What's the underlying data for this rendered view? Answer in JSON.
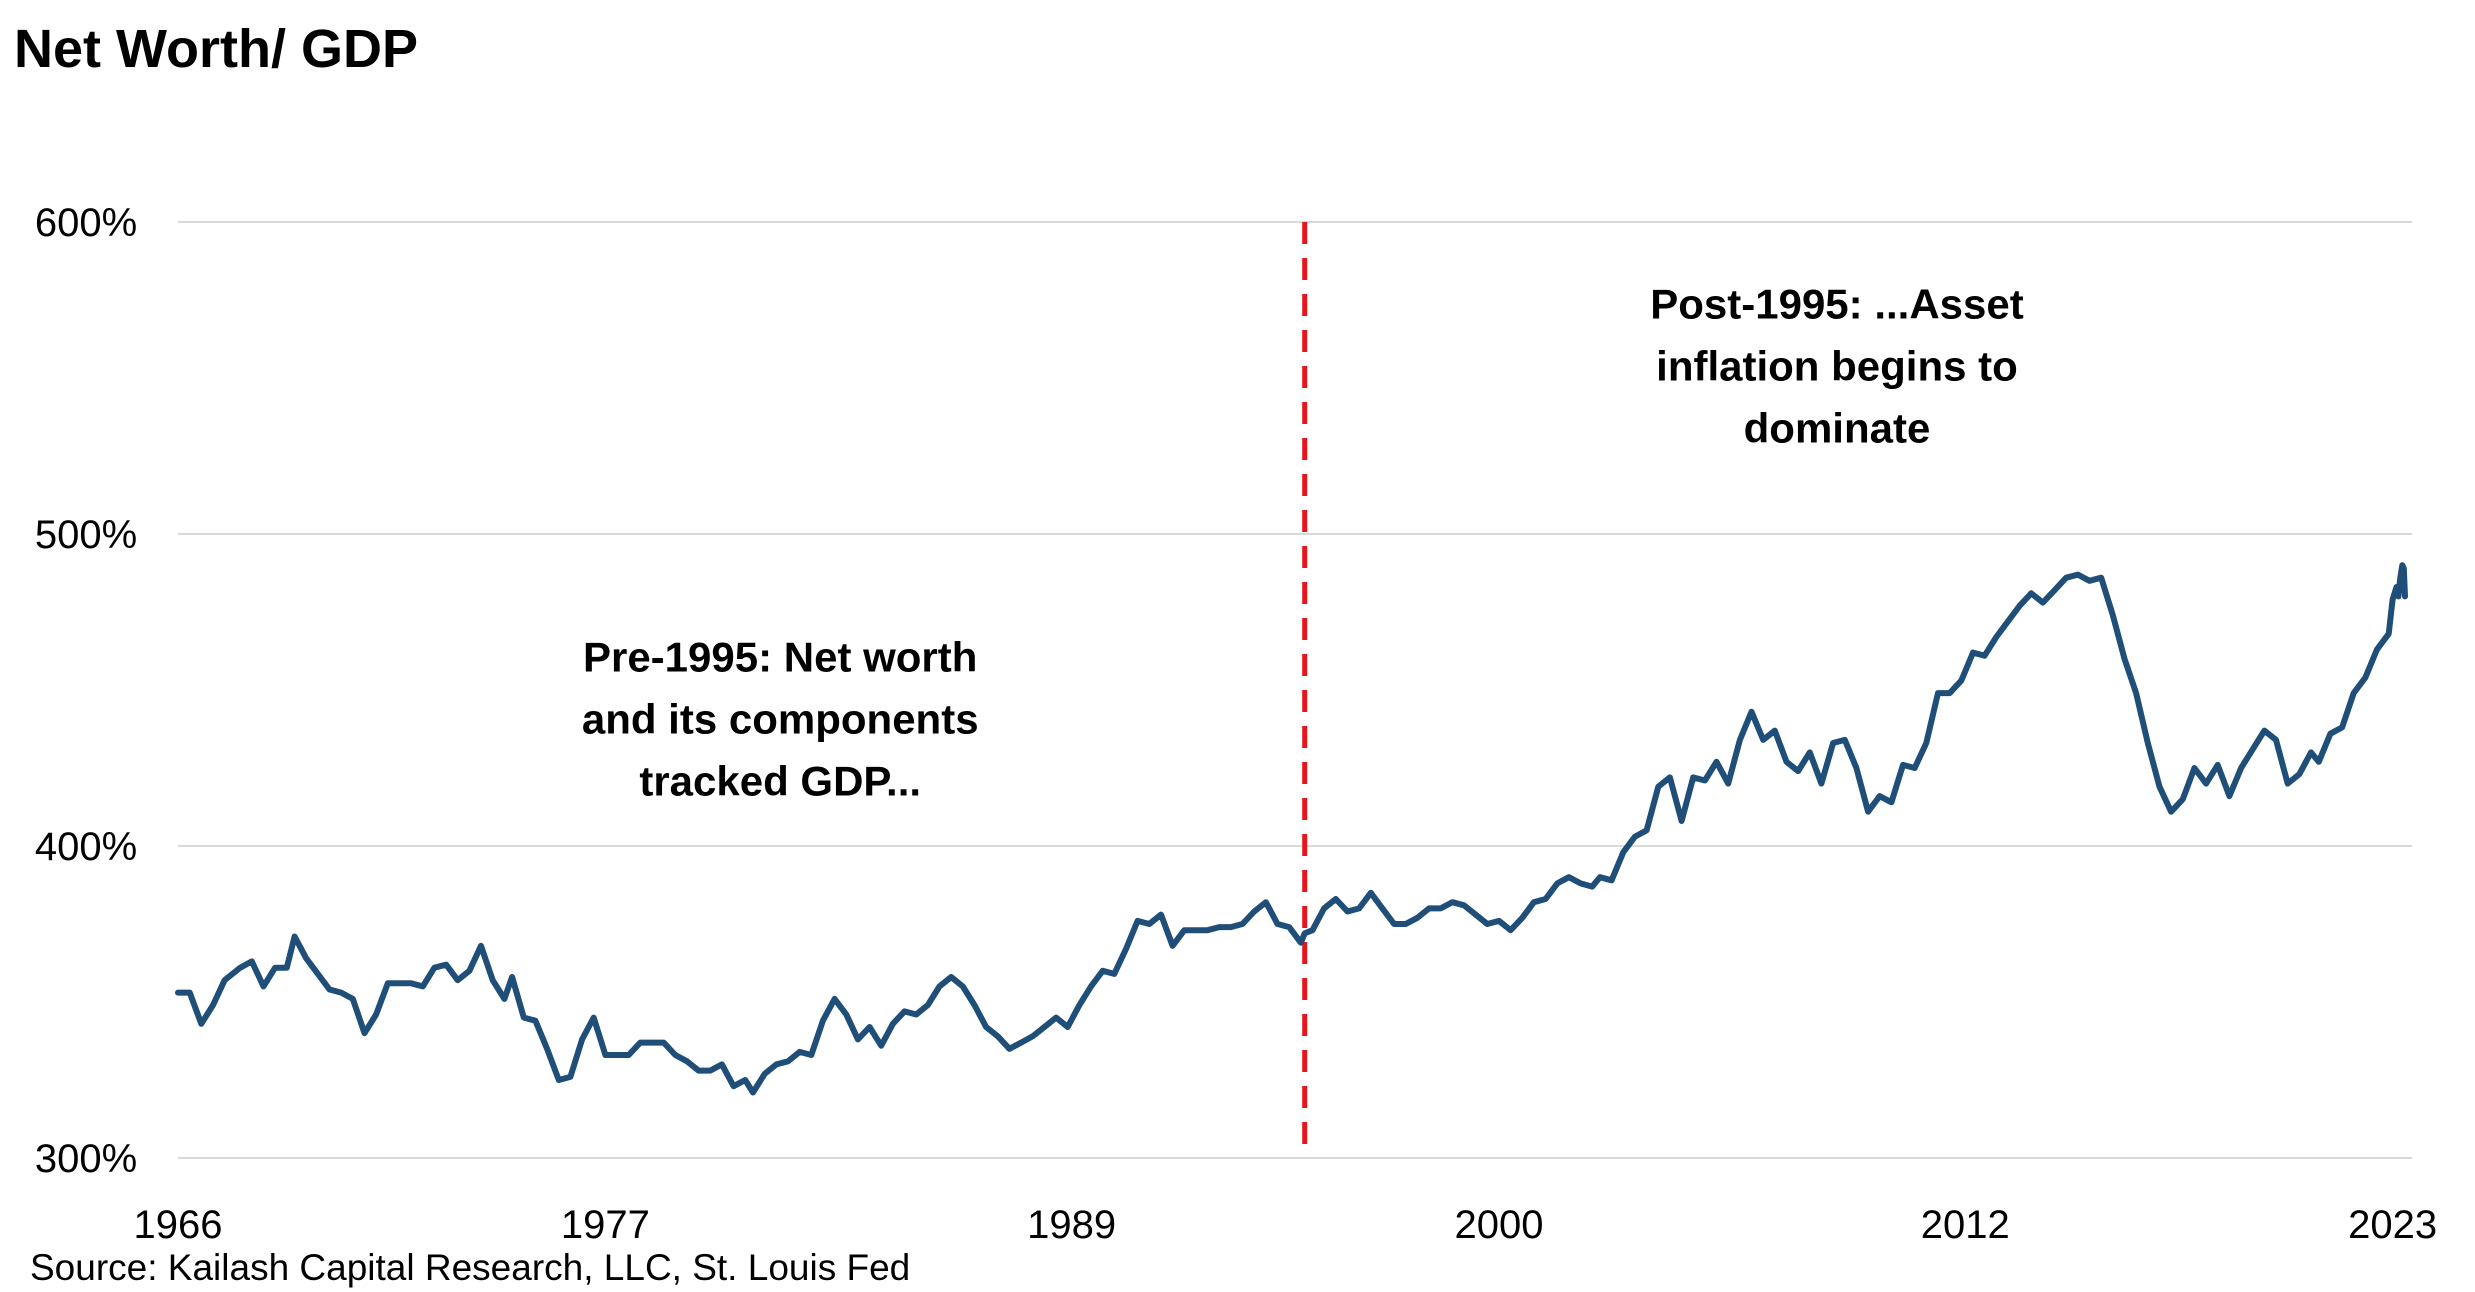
{
  "colors": {
    "series": "#1f4e79",
    "grid": "#d9d9d9",
    "marker": "#e8141c",
    "text": "#000000"
  },
  "chart_data": {
    "type": "line",
    "title": "Net Worth/ GDP",
    "xlabel": "",
    "ylabel": "",
    "xlim": [
      1966,
      2023.5
    ],
    "ylim": [
      300,
      600
    ],
    "grid": true,
    "legend": "none",
    "x_ticks": [
      {
        "value": 1966,
        "label": "1966"
      },
      {
        "value": 1977,
        "label": "1977"
      },
      {
        "value": 1989,
        "label": "1989"
      },
      {
        "value": 2000,
        "label": "2000"
      },
      {
        "value": 2012,
        "label": "2012"
      },
      {
        "value": 2023,
        "label": "2023"
      }
    ],
    "y_ticks": [
      {
        "value": 300,
        "label": "300%"
      },
      {
        "value": 400,
        "label": "400%"
      },
      {
        "value": 500,
        "label": "500%"
      },
      {
        "value": 600,
        "label": "600%"
      }
    ],
    "divider": {
      "x": 1995,
      "style": "dashed"
    },
    "annotations": [
      {
        "lines": [
          "Pre-1995: Net worth",
          "and its components",
          "tracked GDP..."
        ],
        "x": 1981.5,
        "y": 456
      },
      {
        "lines": [
          "Post-1995: ...Asset",
          "inflation begins to",
          "dominate"
        ],
        "x": 2008.7,
        "y": 569
      }
    ],
    "source": "Source: Kailash Capital Research, LLC, St. Louis Fed",
    "series": [
      {
        "name": "Net Worth/GDP",
        "points": [
          [
            1966.0,
            353
          ],
          [
            1966.3,
            353
          ],
          [
            1966.6,
            343
          ],
          [
            1966.9,
            349
          ],
          [
            1967.2,
            357
          ],
          [
            1967.6,
            361
          ],
          [
            1967.9,
            363
          ],
          [
            1968.2,
            355
          ],
          [
            1968.5,
            361
          ],
          [
            1968.8,
            361
          ],
          [
            1969.0,
            371
          ],
          [
            1969.3,
            364
          ],
          [
            1969.6,
            359
          ],
          [
            1969.9,
            354
          ],
          [
            1970.2,
            353
          ],
          [
            1970.5,
            351
          ],
          [
            1970.8,
            340
          ],
          [
            1971.1,
            346
          ],
          [
            1971.4,
            356
          ],
          [
            1971.7,
            356
          ],
          [
            1972.0,
            356
          ],
          [
            1972.3,
            355
          ],
          [
            1972.6,
            361
          ],
          [
            1972.9,
            362
          ],
          [
            1973.2,
            357
          ],
          [
            1973.5,
            360
          ],
          [
            1973.8,
            368
          ],
          [
            1974.1,
            357
          ],
          [
            1974.4,
            351
          ],
          [
            1974.6,
            358
          ],
          [
            1974.9,
            345
          ],
          [
            1975.2,
            344
          ],
          [
            1975.5,
            335
          ],
          [
            1975.8,
            325
          ],
          [
            1976.1,
            326
          ],
          [
            1976.4,
            338
          ],
          [
            1976.7,
            345
          ],
          [
            1977.0,
            333
          ],
          [
            1977.3,
            333
          ],
          [
            1977.6,
            333
          ],
          [
            1977.9,
            337
          ],
          [
            1978.2,
            337
          ],
          [
            1978.5,
            337
          ],
          [
            1978.8,
            333
          ],
          [
            1979.1,
            331
          ],
          [
            1979.4,
            328
          ],
          [
            1979.7,
            328
          ],
          [
            1980.0,
            330
          ],
          [
            1980.3,
            323
          ],
          [
            1980.6,
            325
          ],
          [
            1980.8,
            321
          ],
          [
            1981.1,
            327
          ],
          [
            1981.4,
            330
          ],
          [
            1981.7,
            331
          ],
          [
            1982.0,
            334
          ],
          [
            1982.3,
            333
          ],
          [
            1982.6,
            344
          ],
          [
            1982.9,
            351
          ],
          [
            1983.2,
            346
          ],
          [
            1983.5,
            338
          ],
          [
            1983.8,
            342
          ],
          [
            1984.1,
            336
          ],
          [
            1984.4,
            343
          ],
          [
            1984.7,
            347
          ],
          [
            1985.0,
            346
          ],
          [
            1985.3,
            349
          ],
          [
            1985.6,
            355
          ],
          [
            1985.9,
            358
          ],
          [
            1986.2,
            355
          ],
          [
            1986.5,
            349
          ],
          [
            1986.8,
            342
          ],
          [
            1987.1,
            339
          ],
          [
            1987.4,
            335
          ],
          [
            1987.7,
            337
          ],
          [
            1988.0,
            339
          ],
          [
            1988.3,
            342
          ],
          [
            1988.6,
            345
          ],
          [
            1988.9,
            342
          ],
          [
            1989.2,
            349
          ],
          [
            1989.5,
            355
          ],
          [
            1989.8,
            360
          ],
          [
            1990.1,
            359
          ],
          [
            1990.4,
            367
          ],
          [
            1990.7,
            376
          ],
          [
            1991.0,
            375
          ],
          [
            1991.3,
            378
          ],
          [
            1991.6,
            368
          ],
          [
            1991.9,
            373
          ],
          [
            1992.2,
            373
          ],
          [
            1992.5,
            373
          ],
          [
            1992.8,
            374
          ],
          [
            1993.1,
            374
          ],
          [
            1993.4,
            375
          ],
          [
            1993.7,
            379
          ],
          [
            1994.0,
            382
          ],
          [
            1994.3,
            375
          ],
          [
            1994.6,
            374
          ],
          [
            1994.9,
            369
          ],
          [
            1995.0,
            372
          ],
          [
            1995.2,
            373
          ],
          [
            1995.5,
            380
          ],
          [
            1995.8,
            383
          ],
          [
            1996.1,
            379
          ],
          [
            1996.4,
            380
          ],
          [
            1996.7,
            385
          ],
          [
            1997.0,
            380
          ],
          [
            1997.3,
            375
          ],
          [
            1997.6,
            375
          ],
          [
            1997.9,
            377
          ],
          [
            1998.2,
            380
          ],
          [
            1998.5,
            380
          ],
          [
            1998.8,
            382
          ],
          [
            1999.1,
            381
          ],
          [
            1999.4,
            378
          ],
          [
            1999.7,
            375
          ],
          [
            2000.0,
            376
          ],
          [
            2000.3,
            373
          ],
          [
            2000.6,
            377
          ],
          [
            2000.9,
            382
          ],
          [
            2001.2,
            383
          ],
          [
            2001.5,
            388
          ],
          [
            2001.8,
            390
          ],
          [
            2002.1,
            388
          ],
          [
            2002.4,
            387
          ],
          [
            2002.6,
            390
          ],
          [
            2002.9,
            389
          ],
          [
            2003.2,
            398
          ],
          [
            2003.5,
            403
          ],
          [
            2003.8,
            405
          ],
          [
            2004.1,
            419
          ],
          [
            2004.4,
            422
          ],
          [
            2004.7,
            408
          ],
          [
            2005.0,
            422
          ],
          [
            2005.3,
            421
          ],
          [
            2005.6,
            427
          ],
          [
            2005.9,
            420
          ],
          [
            2006.2,
            434
          ],
          [
            2006.5,
            443
          ],
          [
            2006.8,
            434
          ],
          [
            2007.1,
            437
          ],
          [
            2007.4,
            427
          ],
          [
            2007.7,
            424
          ],
          [
            2008.0,
            430
          ],
          [
            2008.3,
            420
          ],
          [
            2008.6,
            433
          ],
          [
            2008.9,
            434
          ],
          [
            2009.2,
            425
          ],
          [
            2009.5,
            411
          ],
          [
            2009.8,
            416
          ],
          [
            2010.1,
            414
          ],
          [
            2010.4,
            426
          ],
          [
            2010.7,
            425
          ],
          [
            2011.0,
            433
          ],
          [
            2011.3,
            449
          ],
          [
            2011.6,
            449
          ],
          [
            2011.9,
            453
          ],
          [
            2012.2,
            462
          ],
          [
            2012.5,
            461
          ],
          [
            2012.8,
            467
          ],
          [
            2013.1,
            472
          ],
          [
            2013.4,
            477
          ],
          [
            2013.7,
            481
          ],
          [
            2014.0,
            478
          ],
          [
            2014.3,
            482
          ],
          [
            2014.6,
            486
          ],
          [
            2014.9,
            487
          ],
          [
            2015.2,
            485
          ],
          [
            2015.5,
            486
          ],
          [
            2015.8,
            474
          ],
          [
            2016.1,
            460
          ],
          [
            2016.4,
            449
          ],
          [
            2016.7,
            433
          ],
          [
            2017.0,
            419
          ],
          [
            2017.3,
            411
          ],
          [
            2017.6,
            415
          ],
          [
            2017.9,
            425
          ],
          [
            2018.2,
            420
          ],
          [
            2018.5,
            426
          ],
          [
            2018.8,
            416
          ],
          [
            2019.1,
            425
          ],
          [
            2019.4,
            431
          ],
          [
            2019.7,
            437
          ],
          [
            2020.0,
            434
          ],
          [
            2020.3,
            420
          ],
          [
            2020.6,
            423
          ],
          [
            2020.9,
            430
          ],
          [
            2021.1,
            427
          ],
          [
            2021.4,
            436
          ],
          [
            2021.7,
            438
          ],
          [
            2022.0,
            449
          ],
          [
            2022.3,
            454
          ],
          [
            2022.6,
            463
          ],
          [
            2022.9,
            468
          ],
          [
            2023.0,
            479
          ],
          [
            2023.1,
            483
          ],
          [
            2023.15,
            480
          ],
          [
            2023.2,
            486
          ],
          [
            2023.25,
            490
          ],
          [
            2023.29,
            489
          ],
          [
            2023.32,
            480
          ]
        ]
      }
    ]
  }
}
